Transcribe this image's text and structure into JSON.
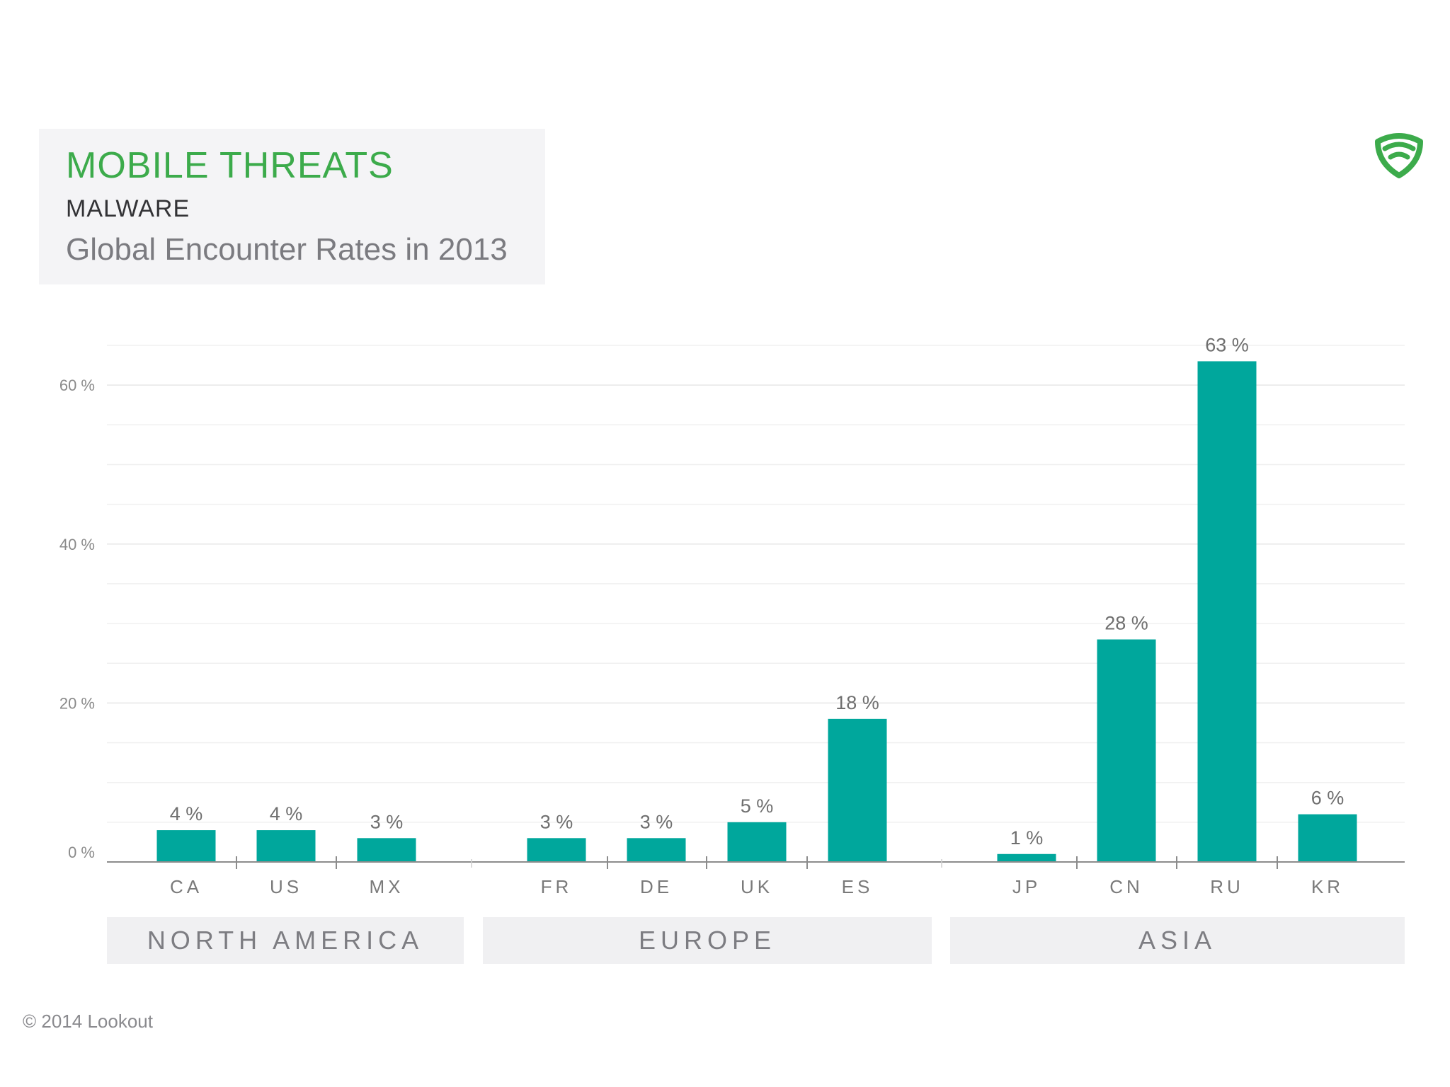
{
  "header": {
    "title": "MOBILE THREATS",
    "subtitle": "MALWARE",
    "description": "Global Encounter Rates in 2013"
  },
  "footer": {
    "copyright": "© 2014 Lookout"
  },
  "logo_icon": "lookout-shield-logo-icon",
  "colors": {
    "bar": "#00a79c",
    "title": "#3cab4b",
    "logo": "#3cab4b",
    "grid": "#ececec",
    "axis": "#8c8c8c",
    "label": "#7a7a7a",
    "group_band": "#f0f0f2"
  },
  "chart_data": {
    "type": "bar",
    "title": "MOBILE THREATS",
    "subtitle": "Global Encounter Rates in 2013",
    "ylim": [
      0,
      65
    ],
    "yticks": [
      0,
      20,
      40,
      60
    ],
    "ytick_labels": [
      "0 %",
      "20 %",
      "40 %",
      "60 %"
    ],
    "grid": true,
    "categories": [
      "CA",
      "US",
      "MX",
      "FR",
      "DE",
      "UK",
      "ES",
      "JP",
      "CN",
      "RU",
      "KR"
    ],
    "values": [
      4,
      4,
      3,
      3,
      3,
      5,
      18,
      1,
      28,
      63,
      6
    ],
    "value_labels": [
      "4 %",
      "4 %",
      "3 %",
      "3 %",
      "3 %",
      "5 %",
      "18 %",
      "1 %",
      "28 %",
      "63 %",
      "6 %"
    ],
    "groups": [
      {
        "name": "NORTH AMERICA",
        "categories": [
          "CA",
          "US",
          "MX"
        ]
      },
      {
        "name": "EUROPE",
        "categories": [
          "FR",
          "DE",
          "UK",
          "ES"
        ]
      },
      {
        "name": "ASIA",
        "categories": [
          "JP",
          "CN",
          "RU",
          "KR"
        ]
      }
    ]
  }
}
